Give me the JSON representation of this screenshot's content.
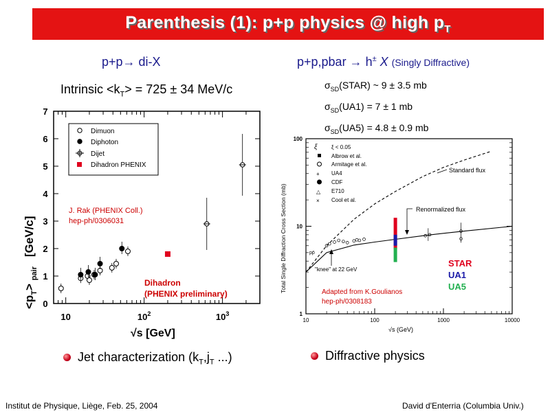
{
  "slide": {
    "title_main": "Parenthesis (1): p+p physics @ high p",
    "title_sub": "T",
    "left_header": "p+p→ di-X",
    "left_intrinsic": "Intrinsic <k",
    "left_intrinsic_sub": "T",
    "left_intrinsic_rest": "> = 725 ± 34 MeV/c",
    "right_header": "p+p,pbar → h",
    "right_header_sup": "±",
    "right_header_x": "X",
    "right_header_paren": "(Singly Diffractive)",
    "sigma_lines": [
      {
        "sub": "SD",
        "text": "(STAR) ~ 9 ± 3.5 mb"
      },
      {
        "sub": "SD",
        "text": "(UA1) = 7 ± 1 mb"
      },
      {
        "sub": "SD",
        "text": "(UA5) = 4.8 ± 0.9 mb"
      }
    ],
    "sigma_symbol": "σ",
    "bullet_left": "Jet characterization (k",
    "bullet_left_sub1": "T",
    "bullet_left_mid": ",j",
    "bullet_left_sub2": "T",
    "bullet_left_end": " ...)",
    "bullet_right": "Diffractive physics",
    "footer_left": "Institut de Physique, Liège, Feb. 25, 2004",
    "footer_right": "David d'Enterria (Columbia Univ.)"
  },
  "colors": {
    "title_bar": "#e41313",
    "header_blue": "#1a1a8c",
    "annotation_red": "#cc0000",
    "star": "#e0001e",
    "ua1": "#1a1aa8",
    "ua5": "#22b050"
  },
  "left_plot": {
    "ylabel_main": "<p",
    "ylabel_sub1": "T",
    "ylabel_end": "> ",
    "ylabel_sub2": "pair",
    "ylabel_unit": "[GeV/c]",
    "xlabel": "√s  [GeV]",
    "annotation1": "J. Rak (PHENIX Coll.)",
    "annotation2": "hep-ph/0306031",
    "dihadron_label1": "Dihadron",
    "dihadron_label2": "(PHENIX preliminary)"
  },
  "right_plot": {
    "xlabel": "√s (GeV)",
    "ylabel": "Total Single Diffraction Cross Section (mb)",
    "knee_label": "\"knee\" at 22 GeV",
    "standard_flux": "Standard flux",
    "renormalized_flux": "Renormalized flux",
    "star_label": "STAR",
    "ua1_label": "UA1",
    "ua5_label": "UA5",
    "adapted1": "Adapted from K.Goulianos",
    "adapted2": "hep-ph/0308183",
    "ppbar_label": "pp̄"
  },
  "chart_data": [
    {
      "type": "scatter",
      "xlabel": "√s [GeV]",
      "ylabel": "<pT>pair [GeV/c]",
      "xscale": "log",
      "xlim": [
        7,
        3000
      ],
      "ylim": [
        0,
        7
      ],
      "x_ticks": [
        "10",
        "10²",
        "10³"
      ],
      "y_ticks": [
        "0",
        "1",
        "2",
        "3",
        "4",
        "5",
        "6",
        "7"
      ],
      "legend": {
        "placement": "top-left",
        "entries": [
          "Dimuon",
          "Diphoton",
          "Dijet",
          "Dihadron PHENIX"
        ]
      },
      "series": [
        {
          "name": "Dimuon",
          "marker": "open-circle",
          "x": [
            8.7,
            15.5,
            19,
            20,
            23,
            27.4,
            38.8,
            44,
            62
          ],
          "y": [
            0.55,
            0.92,
            1.0,
            0.85,
            1.05,
            1.2,
            1.3,
            1.45,
            1.9
          ]
        },
        {
          "name": "Diphoton",
          "marker": "filled-circle",
          "x": [
            15.5,
            19.4,
            23.7,
            27.4,
            52
          ],
          "y": [
            1.05,
            1.15,
            1.05,
            1.45,
            2.0
          ]
        },
        {
          "name": "Dijet",
          "marker": "open-cross",
          "x": [
            630,
            1800
          ],
          "y": [
            2.9,
            5.05
          ]
        },
        {
          "name": "Dihadron PHENIX",
          "marker": "red-square",
          "x": [
            200
          ],
          "y": [
            1.8
          ]
        }
      ]
    },
    {
      "type": "line",
      "xlabel": "√s (GeV)",
      "ylabel": "Total Single Diffraction Cross Section (mb)",
      "xscale": "log",
      "yscale": "log",
      "xlim": [
        10,
        10000
      ],
      "ylim": [
        1,
        100
      ],
      "x_ticks": [
        "10",
        "100",
        "1000",
        "10000"
      ],
      "y_ticks": [
        "1",
        "10",
        "100"
      ],
      "legend": {
        "placement": "top-left",
        "title": "ξ < 0.05",
        "entries": [
          "Albrow et al.",
          "Armitage et al.",
          "UA4",
          "CDF",
          "E710",
          "Cool et al."
        ]
      },
      "series": [
        {
          "name": "Standard flux",
          "style": "dashed",
          "x": [
            10,
            20,
            50,
            100,
            200,
            500,
            1000,
            2000,
            5000
          ],
          "y": [
            3.0,
            6.0,
            12,
            18,
            25,
            37,
            47,
            57,
            72
          ]
        },
        {
          "name": "Renormalized flux",
          "style": "solid",
          "x": [
            10,
            20,
            50,
            100,
            200,
            500,
            1000,
            2000,
            10000
          ],
          "y": [
            3.0,
            5.0,
            6.1,
            6.6,
            7.1,
            7.8,
            8.3,
            8.8,
            10.0
          ]
        },
        {
          "name": "STAR",
          "x": [
            200
          ],
          "y_range": [
            5.5,
            12.5
          ]
        },
        {
          "name": "UA1",
          "x": [
            200
          ],
          "y_range": [
            6.0,
            8.0
          ]
        },
        {
          "name": "UA5",
          "x": [
            200
          ],
          "y_range": [
            3.9,
            5.7
          ]
        }
      ]
    }
  ]
}
